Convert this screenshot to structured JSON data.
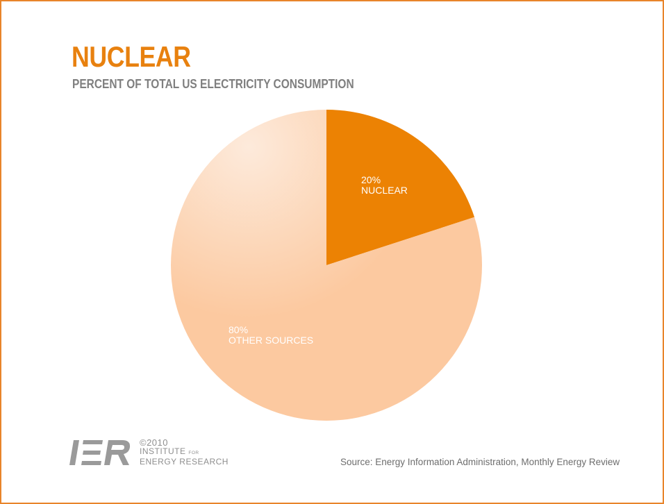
{
  "title": "NUCLEAR",
  "subtitle": "PERCENT OF TOTAL US ELECTRICITY CONSUMPTION",
  "source": "Source: Energy Information Administration, Monthly Energy Review",
  "logo": {
    "mark": "IER",
    "copyright": "©2010",
    "line1_main": "INSTITUTE",
    "line1_small": "FOR",
    "line2": "ENERGY RESEARCH"
  },
  "colors": {
    "accent": "#e8810f",
    "nuclear": "#ec8203",
    "other": "#fcc9a0",
    "frame": "#e8842a",
    "logo": "#9a9a9a"
  },
  "chart_data": {
    "type": "pie",
    "title": "NUCLEAR",
    "subtitle": "PERCENT OF TOTAL US ELECTRICITY CONSUMPTION",
    "slices": [
      {
        "label": "NUCLEAR",
        "value": 20,
        "value_label": "20%",
        "color": "#ec8203"
      },
      {
        "label": "OTHER SOURCES",
        "value": 80,
        "value_label": "80%",
        "color": "#fcc9a0"
      }
    ],
    "start_angle": "12 o'clock",
    "direction": "clockwise",
    "legend": "none"
  }
}
